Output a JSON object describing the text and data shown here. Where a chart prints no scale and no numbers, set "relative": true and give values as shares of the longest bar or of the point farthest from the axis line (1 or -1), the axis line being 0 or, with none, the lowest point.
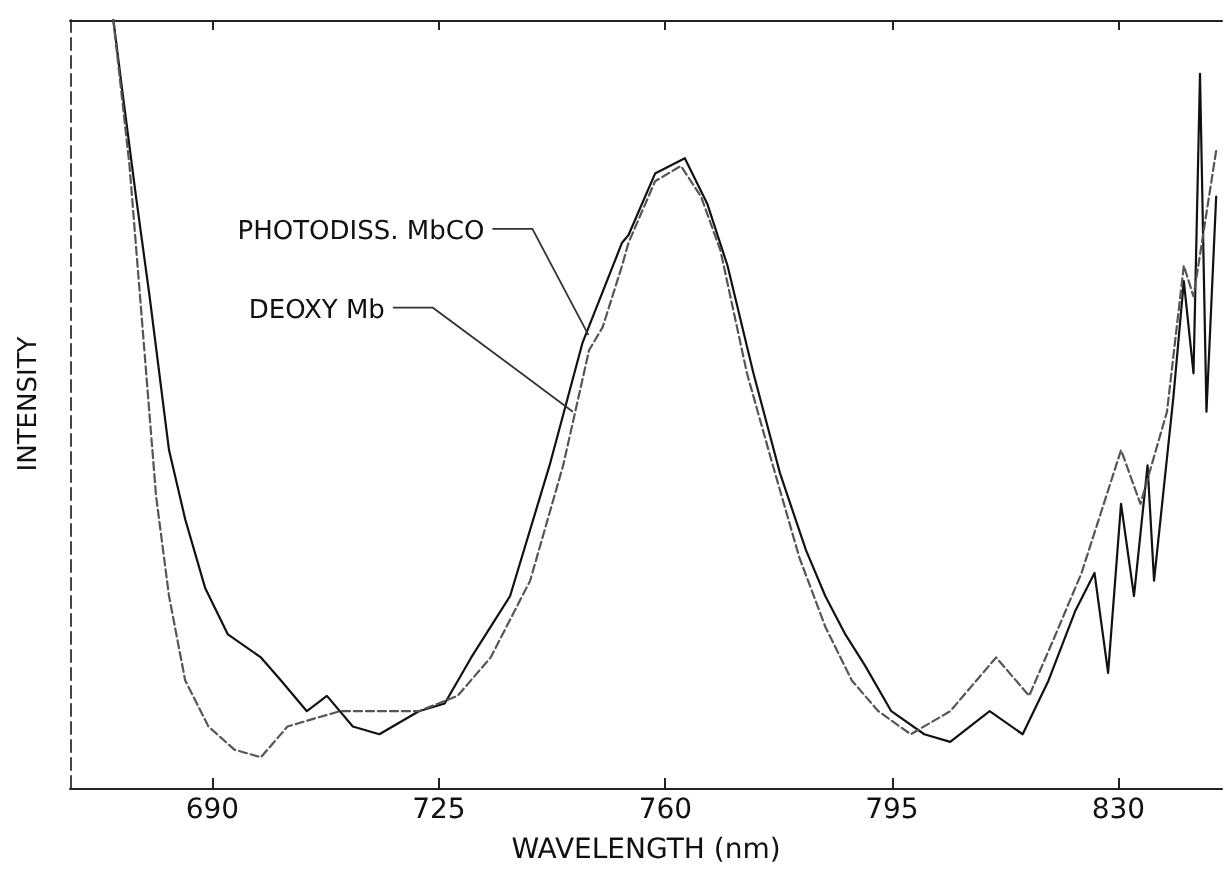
{
  "chart_data": {
    "type": "line",
    "relative": true,
    "xlabel": "WAVELENGTH (nm)",
    "ylabel": "INTENSITY",
    "xlim": [
      668,
      846
    ],
    "xticks": [
      690,
      725,
      760,
      795,
      830
    ],
    "grid": false,
    "marker": "none",
    "annotations": [
      {
        "text": "PHOTODISS. MbCO",
        "x": 748.1,
        "y": 0.59
      },
      {
        "text": "DEOXY Mb",
        "x": 745.7,
        "y": 0.49
      }
    ],
    "series": [
      {
        "color": "#111111",
        "line_style": "solid",
        "x": [
          674.7,
          676.2,
          678.2,
          680.3,
          683.3,
          685.8,
          688.9,
          692.4,
          697.5,
          700.6,
          704.6,
          707.7,
          711.7,
          715.8,
          721.9,
          725.9,
          730,
          736,
          742.1,
          747.2,
          753.3,
          754.3,
          758.4,
          763,
          766.5,
          769.6,
          773.6,
          777.7,
          781.7,
          784.7,
          787.8,
          790.8,
          794.9,
          800,
          804,
          810.1,
          815.2,
          819.2,
          823.3,
          826.3,
          828.4,
          830.4,
          832.4,
          834.5,
          835.5,
          838.5,
          840.1,
          841.6,
          842.6,
          843.6,
          845.1
        ],
        "values": [
          1.0,
          0.9,
          0.77,
          0.64,
          0.44,
          0.35,
          0.26,
          0.2,
          0.17,
          0.14,
          0.1,
          0.12,
          0.08,
          0.07,
          0.1,
          0.11,
          0.17,
          0.25,
          0.42,
          0.58,
          0.71,
          0.72,
          0.8,
          0.82,
          0.76,
          0.68,
          0.54,
          0.41,
          0.31,
          0.25,
          0.2,
          0.16,
          0.1,
          0.07,
          0.06,
          0.1,
          0.07,
          0.14,
          0.23,
          0.28,
          0.15,
          0.37,
          0.25,
          0.42,
          0.27,
          0.51,
          0.66,
          0.54,
          0.93,
          0.49,
          0.77
        ]
      },
      {
        "color": "#555555",
        "line_style": "dashed",
        "x": [
          674.7,
          677.2,
          679.3,
          681.3,
          683.3,
          685.8,
          689.4,
          693.4,
          697.5,
          701.6,
          705.6,
          709.7,
          715.8,
          721.9,
          727.9,
          733,
          739.1,
          744.2,
          748.2,
          750.3,
          753.3,
          754.3,
          758.4,
          762.4,
          765.5,
          768.5,
          772.6,
          776.6,
          780.7,
          784.7,
          788.8,
          792.9,
          797.9,
          804,
          811.1,
          816.2,
          820.3,
          824.3,
          830.4,
          833.4,
          837.5,
          840.1,
          841.6,
          845.1
        ],
        "values": [
          1.0,
          0.81,
          0.59,
          0.38,
          0.25,
          0.14,
          0.08,
          0.05,
          0.04,
          0.08,
          0.09,
          0.1,
          0.1,
          0.1,
          0.12,
          0.17,
          0.27,
          0.42,
          0.57,
          0.6,
          0.68,
          0.71,
          0.79,
          0.81,
          0.77,
          0.7,
          0.54,
          0.42,
          0.3,
          0.21,
          0.14,
          0.1,
          0.07,
          0.1,
          0.17,
          0.12,
          0.2,
          0.28,
          0.44,
          0.37,
          0.49,
          0.68,
          0.64,
          0.83
        ]
      }
    ]
  }
}
